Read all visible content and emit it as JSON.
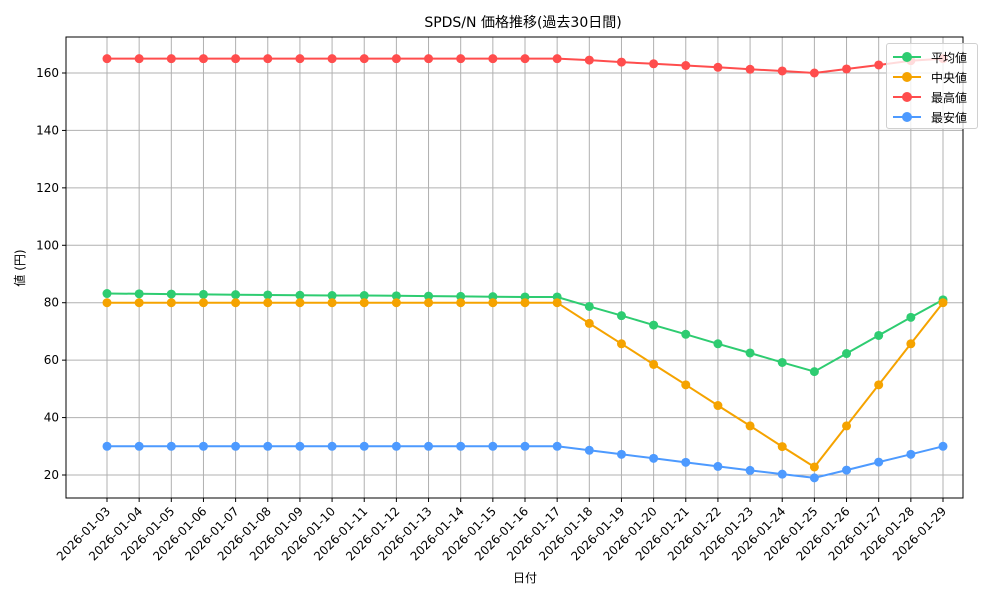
{
  "chart_data": {
    "type": "line",
    "title": "SPDS/N 価格推移(過去30日間)",
    "xlabel": "日付",
    "ylabel": "値 (円)",
    "ylim": [
      12,
      172
    ],
    "yticks": [
      20,
      40,
      60,
      80,
      100,
      120,
      140,
      160
    ],
    "grid": true,
    "legend_position": "upper right",
    "categories": [
      "2026-01-03",
      "2026-01-04",
      "2026-01-05",
      "2026-01-06",
      "2026-01-07",
      "2026-01-08",
      "2026-01-09",
      "2026-01-10",
      "2026-01-11",
      "2026-01-12",
      "2026-01-13",
      "2026-01-14",
      "2026-01-15",
      "2026-01-16",
      "2026-01-17",
      "2026-01-18",
      "2026-01-19",
      "2026-01-20",
      "2026-01-21",
      "2026-01-22",
      "2026-01-23",
      "2026-01-24",
      "2026-01-25",
      "2026-01-26",
      "2026-01-27",
      "2026-01-28",
      "2026-01-29"
    ],
    "series": [
      {
        "name": "平均値",
        "color": "#2ecc71",
        "values": [
          83.2,
          83.1,
          83.0,
          82.9,
          82.8,
          82.7,
          82.6,
          82.5,
          82.5,
          82.4,
          82.3,
          82.2,
          82.1,
          82.0,
          82.0,
          78.7,
          75.5,
          72.2,
          69.0,
          65.7,
          62.5,
          59.2,
          56.0,
          62.3,
          68.6,
          74.9,
          81.0
        ]
      },
      {
        "name": "中央値",
        "color": "#f5a300",
        "values": [
          80,
          80,
          80,
          80,
          80,
          80,
          80,
          80,
          80,
          80,
          80,
          80,
          80,
          80,
          80,
          72.8,
          65.7,
          58.5,
          51.4,
          44.2,
          37.1,
          29.9,
          22.8,
          37.1,
          51.4,
          65.7,
          80.0
        ]
      },
      {
        "name": "最高値",
        "color": "#ff4d4d",
        "values": [
          165,
          165,
          165,
          165,
          165,
          165,
          165,
          165,
          165,
          165,
          165,
          165,
          165,
          165,
          165,
          164.5,
          163.8,
          163.2,
          162.6,
          162.0,
          161.3,
          160.7,
          160.0,
          161.4,
          162.8,
          164.3,
          165.0
        ]
      },
      {
        "name": "最安値",
        "color": "#4d9aff",
        "values": [
          30,
          30,
          30,
          30,
          30,
          30,
          30,
          30,
          30,
          30,
          30,
          30,
          30,
          30,
          30,
          28.6,
          27.2,
          25.8,
          24.4,
          23.0,
          21.6,
          20.3,
          19.0,
          21.7,
          24.5,
          27.2,
          30.0
        ]
      }
    ]
  },
  "legend": {
    "items": [
      {
        "label": "平均値",
        "color": "#2ecc71"
      },
      {
        "label": "中央値",
        "color": "#f5a300"
      },
      {
        "label": "最高値",
        "color": "#ff4d4d"
      },
      {
        "label": "最安値",
        "color": "#4d9aff"
      }
    ]
  }
}
